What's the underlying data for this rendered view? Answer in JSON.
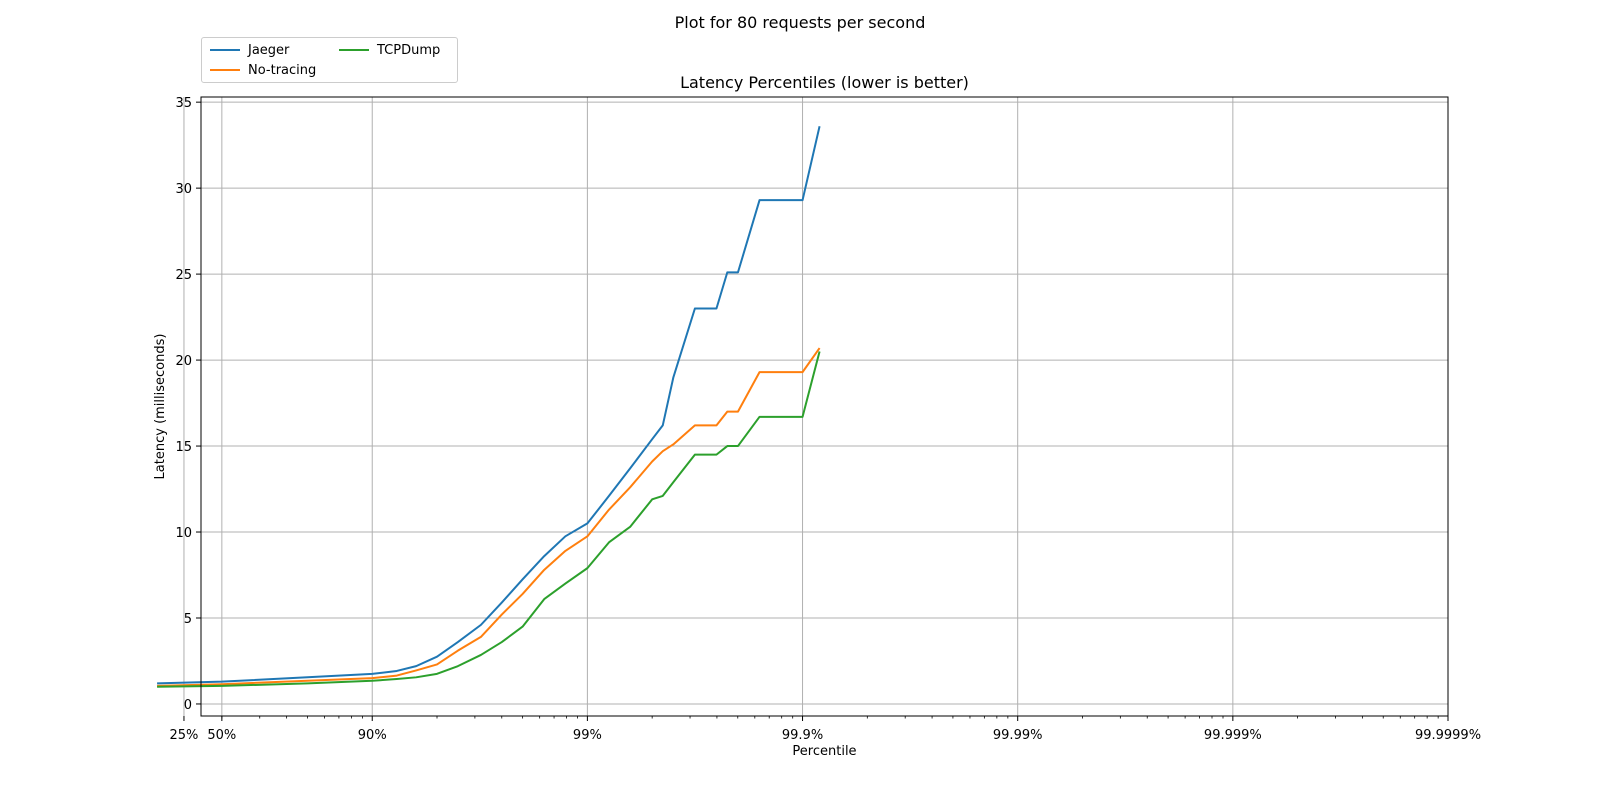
{
  "suptitle": "Plot for 80 requests per second",
  "chart_data": {
    "type": "line",
    "title": "Latency Percentiles (lower is better)",
    "xlabel": "Percentile",
    "ylabel": "Latency (milliseconds)",
    "xscale": "log(1/(1-percentile))",
    "xlim": [
      1.6,
      1000000
    ],
    "ylim": [
      -0.7,
      35.3
    ],
    "grid": true,
    "legend_position": "upper-left-above-axes",
    "legend_columns": 2,
    "x_ticks": [
      {
        "value": 1.3333,
        "label": "25%"
      },
      {
        "value": 2,
        "label": "50%"
      },
      {
        "value": 10,
        "label": "90%"
      },
      {
        "value": 100,
        "label": "99%"
      },
      {
        "value": 1000,
        "label": "99.9%"
      },
      {
        "value": 10000,
        "label": "99.99%"
      },
      {
        "value": 100000,
        "label": "99.999%"
      },
      {
        "value": 1000000,
        "label": "99.9999%"
      }
    ],
    "y_ticks": [
      0,
      5,
      10,
      15,
      20,
      25,
      30,
      35
    ],
    "series": [
      {
        "name": "Jaeger",
        "color": "#1f77b4",
        "points": [
          [
            1,
            1.2
          ],
          [
            2,
            1.3
          ],
          [
            5,
            1.55
          ],
          [
            10,
            1.75
          ],
          [
            13,
            1.92
          ],
          [
            16,
            2.2
          ],
          [
            20,
            2.75
          ],
          [
            25,
            3.6
          ],
          [
            32,
            4.6
          ],
          [
            40,
            5.9
          ],
          [
            50,
            7.25
          ],
          [
            63,
            8.6
          ],
          [
            79,
            9.75
          ],
          [
            100,
            10.5
          ],
          [
            126,
            12.1
          ],
          [
            158,
            13.7
          ],
          [
            200,
            15.4
          ],
          [
            224,
            16.2
          ],
          [
            251,
            19.0
          ],
          [
            316,
            23.0
          ],
          [
            398,
            23.0
          ],
          [
            447,
            25.1
          ],
          [
            501,
            25.1
          ],
          [
            631,
            29.3
          ],
          [
            1000,
            29.3
          ],
          [
            1200,
            33.6
          ]
        ]
      },
      {
        "name": "No-tracing",
        "color": "#ff7f0e",
        "points": [
          [
            1,
            1.05
          ],
          [
            2,
            1.15
          ],
          [
            5,
            1.35
          ],
          [
            10,
            1.5
          ],
          [
            13,
            1.65
          ],
          [
            16,
            1.95
          ],
          [
            20,
            2.3
          ],
          [
            25,
            3.1
          ],
          [
            32,
            3.9
          ],
          [
            40,
            5.2
          ],
          [
            50,
            6.4
          ],
          [
            63,
            7.8
          ],
          [
            79,
            8.9
          ],
          [
            100,
            9.75
          ],
          [
            126,
            11.3
          ],
          [
            158,
            12.6
          ],
          [
            200,
            14.1
          ],
          [
            224,
            14.7
          ],
          [
            251,
            15.1
          ],
          [
            316,
            16.2
          ],
          [
            398,
            16.2
          ],
          [
            447,
            17.0
          ],
          [
            501,
            17.0
          ],
          [
            631,
            19.3
          ],
          [
            1000,
            19.3
          ],
          [
            1200,
            20.7
          ]
        ]
      },
      {
        "name": "TCPDump",
        "color": "#2ca02c",
        "points": [
          [
            1,
            1.0
          ],
          [
            2,
            1.05
          ],
          [
            5,
            1.2
          ],
          [
            10,
            1.35
          ],
          [
            13,
            1.45
          ],
          [
            16,
            1.55
          ],
          [
            20,
            1.75
          ],
          [
            25,
            2.2
          ],
          [
            32,
            2.85
          ],
          [
            40,
            3.6
          ],
          [
            50,
            4.5
          ],
          [
            63,
            6.1
          ],
          [
            79,
            7.0
          ],
          [
            100,
            7.9
          ],
          [
            126,
            9.4
          ],
          [
            158,
            10.3
          ],
          [
            200,
            11.9
          ],
          [
            224,
            12.1
          ],
          [
            251,
            12.9
          ],
          [
            316,
            14.5
          ],
          [
            398,
            14.5
          ],
          [
            447,
            15.0
          ],
          [
            501,
            15.0
          ],
          [
            631,
            16.7
          ],
          [
            1000,
            16.7
          ],
          [
            1200,
            20.5
          ]
        ]
      }
    ]
  }
}
